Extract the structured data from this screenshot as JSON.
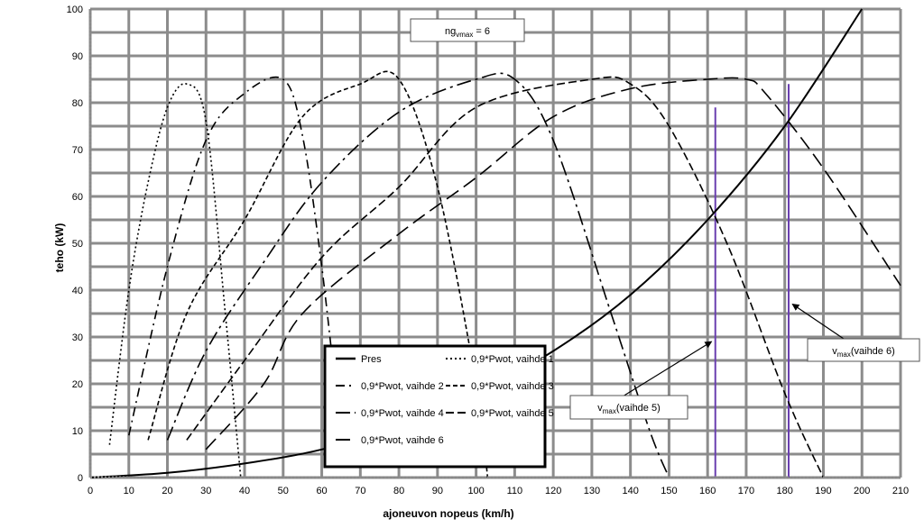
{
  "chart_data": {
    "type": "line",
    "xlabel": "ajoneuvon nopeus (km/h)",
    "ylabel": "teho (kW)",
    "xlim": [
      0,
      210
    ],
    "ylim": [
      0,
      100
    ],
    "xticks": [
      "0",
      "10",
      "20",
      "30",
      "40",
      "50",
      "60",
      "70",
      "80",
      "90",
      "100",
      "110",
      "120",
      "130",
      "140",
      "150",
      "160",
      "170",
      "180",
      "190",
      "200",
      "210"
    ],
    "yticks": [
      "0",
      "10",
      "20",
      "30",
      "40",
      "50",
      "60",
      "70",
      "80",
      "90",
      "100"
    ],
    "grid": true,
    "series": [
      {
        "name": "Pres",
        "dash": "solid",
        "x": [
          0,
          20,
          40,
          60,
          80,
          100,
          120,
          140,
          160,
          180,
          200
        ],
        "y": [
          0,
          1,
          3,
          6,
          11,
          18,
          27,
          39,
          55,
          75,
          100
        ]
      },
      {
        "name": "0,9*Pwot, vaihde 1",
        "dash": "dot",
        "x": [
          5,
          10,
          15,
          20,
          25,
          30,
          35,
          39
        ],
        "y": [
          7,
          40,
          63,
          79,
          84,
          76,
          35,
          0
        ]
      },
      {
        "name": "0,9*Pwot, vaihde 2",
        "dash": "dashdot",
        "x": [
          10,
          20,
          30,
          40,
          50,
          55,
          60,
          65
        ],
        "y": [
          9,
          45,
          72,
          82,
          85,
          73,
          45,
          8
        ]
      },
      {
        "name": "0,9*Pwot, vaihde 3",
        "dash": "shortdash",
        "x": [
          15,
          25,
          40,
          55,
          70,
          80,
          90,
          100,
          103
        ],
        "y": [
          8,
          35,
          55,
          77,
          84,
          85,
          62,
          20,
          0
        ]
      },
      {
        "name": "0,9*Pwot, vaihde 4",
        "dash": "longdashdot",
        "x": [
          20,
          30,
          45,
          60,
          80,
          100,
          110,
          120,
          135,
          145,
          150
        ],
        "y": [
          8,
          27,
          46,
          63,
          78,
          85,
          85,
          72,
          35,
          10,
          0
        ]
      },
      {
        "name": "0,9*Pwot, vaihde 5",
        "dash": "mediumdash",
        "x": [
          25,
          40,
          60,
          80,
          100,
          130,
          140,
          150,
          165,
          180,
          190
        ],
        "y": [
          8,
          25,
          47,
          62,
          79,
          85,
          84,
          75,
          50,
          18,
          0
        ]
      },
      {
        "name": "0,9*Pwot, vaihde 6",
        "dash": "longdash",
        "x": [
          30,
          45,
          55,
          80,
          100,
          120,
          140,
          160,
          170,
          175,
          190,
          210
        ],
        "y": [
          6,
          20,
          35,
          52,
          64,
          77,
          83,
          85,
          85,
          82,
          66,
          41
        ]
      }
    ],
    "vlines": [
      {
        "x": 162,
        "ymax": 79,
        "color": "#6a3fb0"
      },
      {
        "x": 181,
        "ymax": 84,
        "color": "#6a3fb0"
      }
    ],
    "annotations": {
      "ngvmax": {
        "main": "ng",
        "sub": "vmax",
        "tail": " = 6"
      },
      "vmax5": {
        "main": "v",
        "sub": "max",
        "tail": "(vaihde 5)",
        "arrow_to": [
          161,
          29
        ]
      },
      "vmax6": {
        "main": "v",
        "sub": "max",
        "tail": "(vaihde 6)",
        "arrow_to": [
          182,
          37
        ]
      }
    },
    "legend_position": "bottom-center"
  }
}
